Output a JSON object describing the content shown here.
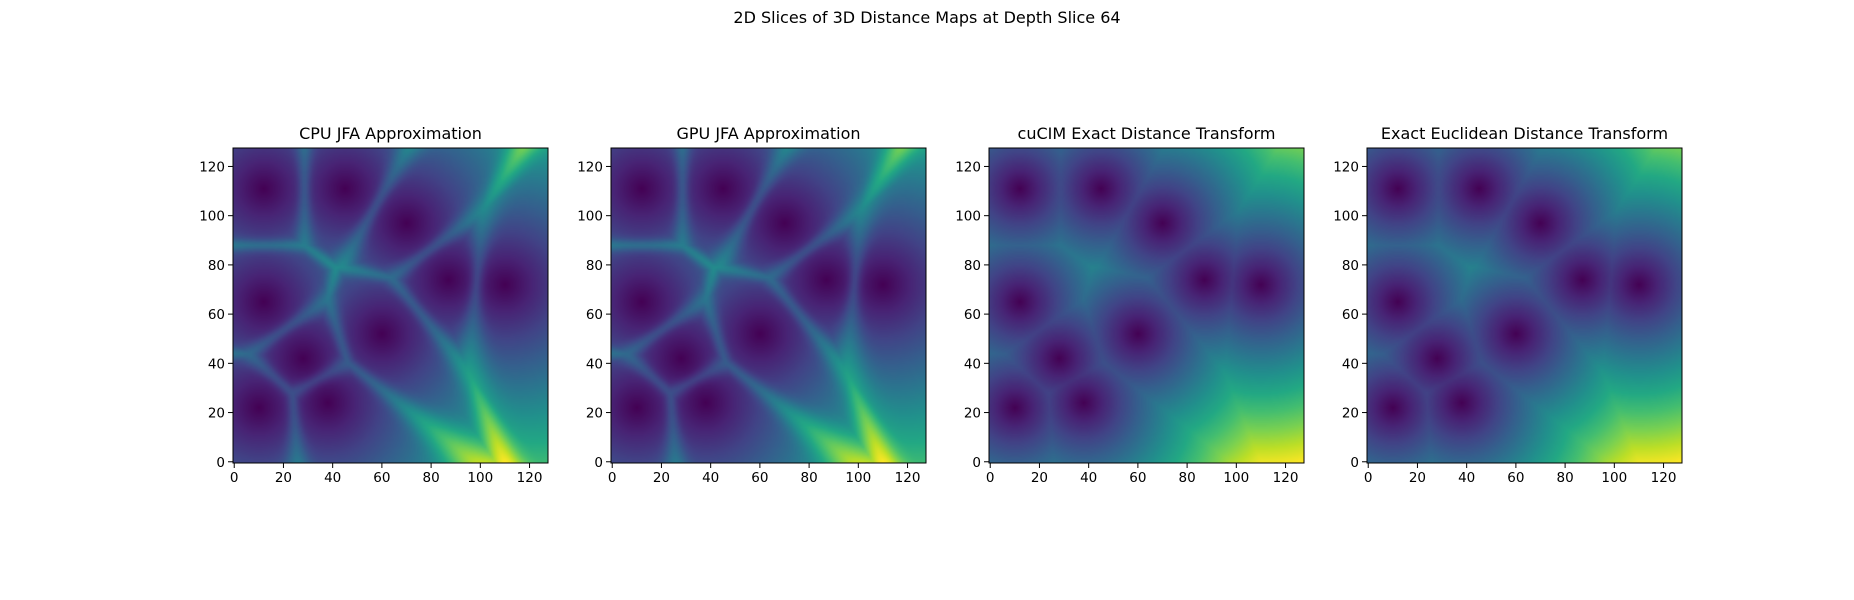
{
  "figure": {
    "suptitle": "2D Slices of 3D Distance Maps at Depth Slice 64",
    "colormap": "viridis",
    "background": "#ffffff"
  },
  "chart_data": [
    {
      "type": "heatmap",
      "title": "CPU JFA Approximation",
      "xlabel": "",
      "ylabel": "",
      "xlim": [
        -0.5,
        127.5
      ],
      "ylim": [
        127.5,
        -0.5
      ],
      "x_ticks": [
        0,
        20,
        40,
        60,
        80,
        100,
        120
      ],
      "y_ticks": [
        0,
        20,
        40,
        60,
        80,
        100,
        120
      ],
      "method": "jfa",
      "grid_size": 128,
      "seeds": [
        [
          87,
          53
        ],
        [
          38,
          103
        ],
        [
          110,
          55
        ],
        [
          28,
          85
        ],
        [
          60,
          75
        ],
        [
          45,
          16
        ],
        [
          12,
          16
        ],
        [
          12,
          62
        ],
        [
          70,
          30
        ],
        [
          10,
          105
        ]
      ],
      "min_color": "#440154",
      "max_color": "#fde725"
    },
    {
      "type": "heatmap",
      "title": "GPU JFA Approximation",
      "xlabel": "",
      "ylabel": "",
      "xlim": [
        -0.5,
        127.5
      ],
      "ylim": [
        127.5,
        -0.5
      ],
      "x_ticks": [
        0,
        20,
        40,
        60,
        80,
        100,
        120
      ],
      "y_ticks": [
        0,
        20,
        40,
        60,
        80,
        100,
        120
      ],
      "method": "jfa",
      "grid_size": 128,
      "seeds": [
        [
          87,
          53
        ],
        [
          38,
          103
        ],
        [
          110,
          55
        ],
        [
          28,
          85
        ],
        [
          60,
          75
        ],
        [
          45,
          16
        ],
        [
          12,
          16
        ],
        [
          12,
          62
        ],
        [
          70,
          30
        ],
        [
          10,
          105
        ]
      ],
      "min_color": "#440154",
      "max_color": "#fde725"
    },
    {
      "type": "heatmap",
      "title": "cuCIM Exact Distance Transform",
      "xlabel": "",
      "ylabel": "",
      "xlim": [
        -0.5,
        127.5
      ],
      "ylim": [
        127.5,
        -0.5
      ],
      "x_ticks": [
        0,
        20,
        40,
        60,
        80,
        100,
        120
      ],
      "y_ticks": [
        0,
        20,
        40,
        60,
        80,
        100,
        120
      ],
      "method": "exact",
      "grid_size": 128,
      "seeds": [
        [
          87,
          53
        ],
        [
          38,
          103
        ],
        [
          110,
          55
        ],
        [
          28,
          85
        ],
        [
          60,
          75
        ],
        [
          45,
          16
        ],
        [
          12,
          16
        ],
        [
          12,
          62
        ],
        [
          70,
          30
        ],
        [
          10,
          105
        ]
      ],
      "min_color": "#440154",
      "max_color": "#fde725"
    },
    {
      "type": "heatmap",
      "title": "Exact Euclidean Distance Transform",
      "xlabel": "",
      "ylabel": "",
      "xlim": [
        -0.5,
        127.5
      ],
      "ylim": [
        127.5,
        -0.5
      ],
      "x_ticks": [
        0,
        20,
        40,
        60,
        80,
        100,
        120
      ],
      "y_ticks": [
        0,
        20,
        40,
        60,
        80,
        100,
        120
      ],
      "method": "exact",
      "grid_size": 128,
      "seeds": [
        [
          87,
          53
        ],
        [
          38,
          103
        ],
        [
          110,
          55
        ],
        [
          28,
          85
        ],
        [
          60,
          75
        ],
        [
          45,
          16
        ],
        [
          12,
          16
        ],
        [
          12,
          62
        ],
        [
          70,
          30
        ],
        [
          10,
          105
        ]
      ],
      "min_color": "#440154",
      "max_color": "#fde725"
    }
  ]
}
